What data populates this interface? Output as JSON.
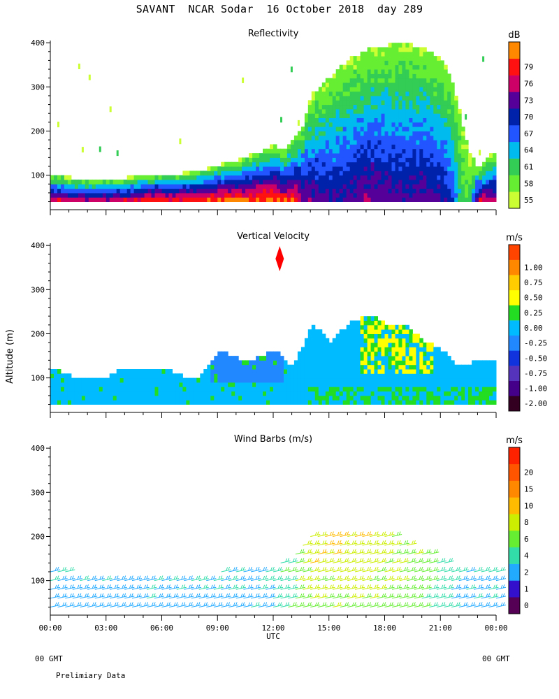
{
  "title": "SAVANT  NCAR Sodar  16 October 2018  day 289",
  "x_axis": {
    "ticks": [
      "00:00",
      "03:00",
      "06:00",
      "09:00",
      "12:00",
      "15:00",
      "18:00",
      "21:00",
      "00:00"
    ],
    "label": "UTC"
  },
  "footer": {
    "left_gmt": "00 GMT",
    "right_gmt": "00 GMT",
    "note": "Prelimiary Data"
  },
  "y_axis_label": "Altitude (m)",
  "colors": {
    "refl": [
      "#ccff33",
      "#66ee33",
      "#33cc55",
      "#00bbee",
      "#2255ff",
      "#0022aa",
      "#550099",
      "#cc0066",
      "#ff1111",
      "#ff8800",
      "#ffbb00",
      "#220011"
    ],
    "vv": [
      "#330022",
      "#440088",
      "#5533bb",
      "#1133dd",
      "#2288ff",
      "#00bbff",
      "#22dd22",
      "#ffff00",
      "#ffcc00",
      "#ff8800",
      "#ff4400",
      "#ff0000"
    ],
    "wind": [
      "#550055",
      "#3311cc",
      "#22aaff",
      "#33ddaa",
      "#66ee33",
      "#ccee00",
      "#ffbb00",
      "#ff8800",
      "#ff5500",
      "#ff2200"
    ]
  },
  "chart_data": [
    {
      "type": "heatmap",
      "title": "Reflectivity",
      "ylim": [
        25,
        405
      ],
      "y_ticks": [
        100,
        200,
        300,
        400
      ],
      "xlim_hours": [
        0,
        24
      ],
      "colorbar": {
        "unit": "dB",
        "levels": [
          "55",
          "58",
          "61",
          "64",
          "67",
          "70",
          "73",
          "76",
          "79"
        ]
      },
      "profile": {
        "hours": [
          0,
          1,
          2,
          3,
          4,
          5,
          6,
          7,
          8,
          9,
          10,
          11,
          12,
          12.5,
          13,
          13.5,
          14,
          15,
          16,
          17,
          18,
          19,
          20,
          21,
          21.5,
          22,
          22.5,
          23,
          23.5,
          24
        ],
        "echo_top_m": [
          100,
          90,
          85,
          85,
          90,
          95,
          100,
          100,
          105,
          120,
          130,
          145,
          165,
          150,
          180,
          210,
          280,
          320,
          360,
          380,
          390,
          395,
          385,
          360,
          320,
          230,
          150,
          110,
          140,
          150
        ],
        "surface_db": [
          75,
          74,
          73,
          74,
          75,
          77,
          77,
          77,
          78,
          79,
          79,
          79,
          80,
          78,
          78,
          74,
          72,
          70,
          71,
          73,
          72,
          71,
          72,
          70,
          68,
          60,
          58,
          75,
          74,
          73
        ]
      }
    },
    {
      "type": "heatmap",
      "title": "Vertical Velocity",
      "ylim": [
        25,
        405
      ],
      "y_ticks": [
        100,
        200,
        300,
        400
      ],
      "xlim_hours": [
        0,
        24
      ],
      "colorbar": {
        "unit": "m/s",
        "levels": [
          "-2.00",
          "-1.00",
          "-0.75",
          "-0.50",
          "-0.25",
          "0.00",
          "0.25",
          "0.50",
          "0.75",
          "1.00"
        ]
      },
      "profile": {
        "hours": [
          0,
          1,
          2,
          3,
          4,
          5,
          6,
          7,
          8,
          9,
          10,
          11,
          12,
          13,
          14,
          15,
          16,
          17,
          18,
          19,
          20,
          21,
          22,
          23,
          24
        ],
        "data_top_m": [
          120,
          100,
          100,
          100,
          120,
          120,
          120,
          100,
          100,
          160,
          140,
          140,
          160,
          120,
          220,
          180,
          220,
          240,
          220,
          220,
          180,
          160,
          120,
          140,
          140
        ]
      }
    },
    {
      "type": "scatter",
      "title": "Wind Barbs (m/s)",
      "ylim": [
        25,
        405
      ],
      "y_ticks": [
        100,
        200,
        300,
        400
      ],
      "xlim_hours": [
        0,
        24
      ],
      "colorbar": {
        "unit": "m/s",
        "levels": [
          "0",
          "1",
          "2",
          "4",
          "6",
          "8",
          "10",
          "15",
          "20"
        ]
      },
      "profile": {
        "hours": [
          0,
          2,
          4,
          6,
          8,
          10,
          12,
          14,
          16,
          18,
          20,
          22,
          24
        ],
        "top_m": [
          130,
          110,
          110,
          110,
          110,
          130,
          130,
          200,
          220,
          210,
          170,
          120,
          120
        ],
        "speed_ms": [
          3,
          3,
          3,
          3,
          3,
          3,
          4,
          8,
          8,
          7,
          6,
          3,
          3
        ]
      }
    }
  ]
}
